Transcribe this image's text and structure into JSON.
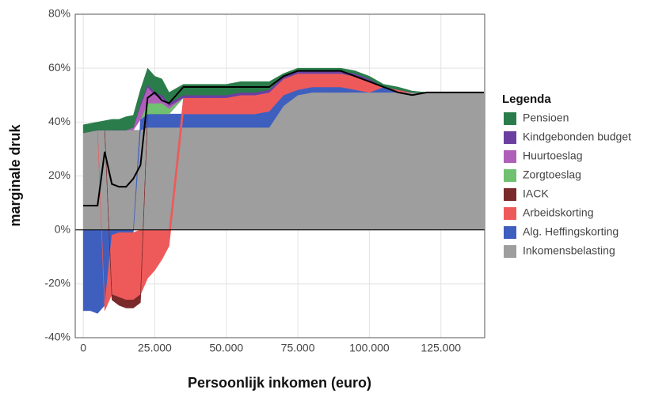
{
  "chart_data": {
    "type": "stacked_area",
    "xlabel": "Persoonlijk inkomen (euro)",
    "ylabel": "marginale druk",
    "legend_title": "Legenda",
    "legend": "right",
    "grid": true,
    "x": [
      0,
      2500,
      5000,
      7500,
      10000,
      12500,
      15000,
      17500,
      20000,
      22500,
      25000,
      27500,
      30000,
      35000,
      40000,
      45000,
      50000,
      55000,
      60000,
      65000,
      70000,
      75000,
      80000,
      85000,
      90000,
      95000,
      100000,
      105000,
      110000,
      115000,
      120000,
      125000,
      130000,
      135000,
      140000
    ],
    "xlim": [
      -2800,
      140300
    ],
    "xticks": [
      0,
      {
        "value": 25000,
        "label": "25.000"
      },
      {
        "value": 50000,
        "label": "50.000"
      },
      {
        "value": 75000,
        "label": "75.000"
      },
      {
        "value": 100000,
        "label": "100.000"
      },
      {
        "value": 125000,
        "label": "125.000"
      }
    ],
    "ylim": [
      -40,
      80
    ],
    "yticks": [
      {
        "value": -40,
        "label": "-40%"
      },
      {
        "value": -20,
        "label": "-20%"
      },
      {
        "value": 0,
        "label": "0%"
      },
      {
        "value": 20,
        "label": "20%"
      },
      {
        "value": 40,
        "label": "40%"
      },
      {
        "value": 60,
        "label": "60%"
      },
      {
        "value": 80,
        "label": "80%"
      }
    ],
    "series": [
      {
        "name": "Inkomensbelasting",
        "color": "#9e9e9e",
        "values": [
          36,
          36.5,
          37,
          37,
          37,
          37,
          37,
          37,
          37,
          38,
          38,
          38,
          38,
          38,
          38,
          38,
          38,
          38,
          38,
          38,
          46,
          50,
          51,
          51,
          51,
          51,
          51,
          51,
          51,
          51,
          51,
          51,
          51,
          51,
          51
        ]
      },
      {
        "name": "Alg. Heffingskorting",
        "color": "#3f5fbf",
        "values": [
          -30,
          -30,
          -31,
          -28,
          -2,
          -1,
          -1,
          -1,
          4,
          5,
          5,
          5,
          5,
          5,
          5,
          5,
          5,
          5,
          5,
          6,
          4,
          2,
          2,
          2,
          2,
          1,
          0,
          2,
          0,
          0,
          0,
          0,
          0,
          0,
          0
        ]
      },
      {
        "name": "Arbeidskorting",
        "color": "#ee5a5a",
        "values": [
          0,
          0,
          0,
          -2,
          -22,
          -24,
          -25,
          -25,
          -24,
          -18,
          -15,
          -11,
          -6,
          6,
          6,
          6,
          6,
          7,
          7,
          7,
          6,
          6,
          5,
          5,
          5,
          5,
          4,
          0,
          1,
          0,
          0,
          0,
          0,
          0,
          0
        ]
      },
      {
        "name": "IACK",
        "color": "#7a2a2a",
        "values": [
          0,
          0,
          0,
          0,
          -2,
          -3,
          -3,
          -3,
          -3,
          0,
          0,
          0,
          0,
          0,
          0,
          0,
          0,
          0,
          0,
          0,
          0,
          0,
          0,
          0,
          0,
          0,
          0,
          0,
          0,
          0,
          0,
          0,
          0,
          0,
          0
        ]
      },
      {
        "name": "Zorgtoeslag",
        "color": "#6fc070",
        "values": [
          0,
          0,
          0,
          0,
          0,
          0,
          0,
          0,
          0,
          4,
          4,
          4,
          2,
          0,
          0,
          0,
          0,
          0,
          0,
          0,
          0,
          0,
          0,
          0,
          0,
          0,
          0,
          0,
          0,
          0,
          0,
          0,
          0,
          0,
          0
        ]
      },
      {
        "name": "Huurtoeslag",
        "color": "#b05fb8",
        "values": [
          0,
          0,
          0,
          0,
          0,
          0,
          0,
          1,
          5,
          6,
          3,
          2,
          1,
          0,
          0,
          0,
          0,
          0,
          0,
          0,
          0,
          0,
          0,
          0,
          0,
          0,
          0,
          0,
          0,
          0,
          0,
          0,
          0,
          0,
          0
        ]
      },
      {
        "name": "Kindgebonden budget",
        "color": "#6b3fa0",
        "values": [
          0,
          0,
          0,
          0,
          0,
          0,
          0,
          0,
          1,
          1,
          1,
          1,
          1,
          1,
          1,
          1,
          1,
          1,
          1,
          1,
          1,
          1,
          1,
          1,
          1,
          1,
          1,
          0,
          0,
          0,
          0,
          0,
          0,
          0,
          0
        ]
      },
      {
        "name": "Pensioen",
        "color": "#2a7d4a",
        "values": [
          3,
          3,
          3,
          3.5,
          4,
          4,
          5,
          4.5,
          5,
          6,
          6,
          6,
          4,
          4,
          4,
          4,
          4,
          4,
          4,
          3,
          1,
          1,
          1,
          1,
          1,
          1,
          1,
          1,
          1,
          0.5,
          0,
          0,
          0,
          0,
          0
        ]
      }
    ],
    "line": {
      "color": "#000000",
      "values": [
        9,
        9,
        9,
        29,
        17,
        16,
        16,
        19,
        24,
        49,
        51,
        48,
        47,
        53,
        53,
        53,
        53,
        53,
        53,
        53,
        57,
        59,
        59,
        59,
        59,
        57,
        55,
        53,
        51,
        50,
        51,
        51,
        51,
        51,
        51
      ]
    }
  }
}
